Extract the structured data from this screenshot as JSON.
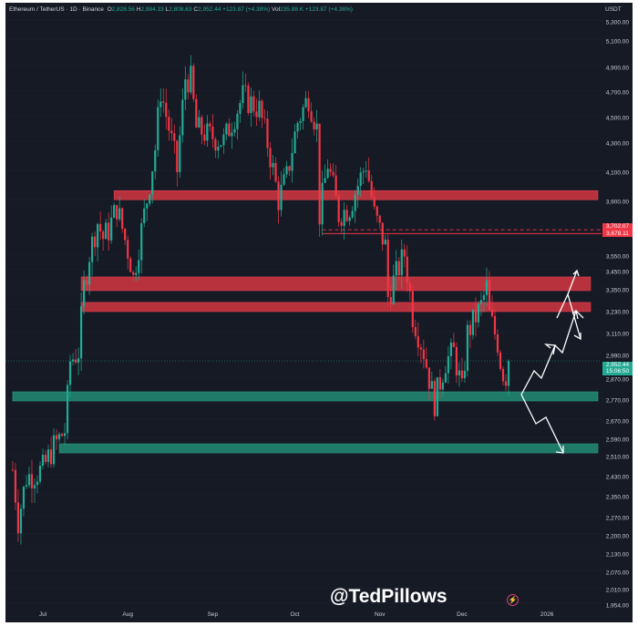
{
  "header": {
    "symbol": "Ethereum / TetherUS · 1D · Binance",
    "o_label": "O",
    "open": "2,828.56",
    "h_label": "H",
    "high": "2,984.33",
    "l_label": "L",
    "low": "2,808.63",
    "c_label": "C",
    "close": "2,952.44",
    "change": "+123.87 (+4.38%)",
    "vol_label": "Vol",
    "volume": "235.88 K",
    "vol_change": "+123.87 (+4.38%)"
  },
  "axis": {
    "unit": "USDT",
    "ticks": [
      "5,300.00",
      "5,100.00",
      "4,900.00",
      "4,700.00",
      "4,500.00",
      "4,300.00",
      "4,100.00",
      "3,900.00",
      "3,550.00",
      "3,450.00",
      "3,350.00",
      "3,230.00",
      "3,110.00",
      "2,990.00",
      "2,870.00",
      "2,770.00",
      "2,670.00",
      "2,590.00",
      "2,510.00",
      "2,430.00",
      "2,350.00",
      "2,270.00",
      "2,200.00",
      "2,130.00",
      "2,070.00",
      "2,010.00",
      "1,954.00"
    ]
  },
  "badges": {
    "level_1": "3,702.07",
    "level_2": "3,678.11",
    "price": "2,952.44",
    "countdown": "15:06:50"
  },
  "xaxis": [
    "Jul",
    "Aug",
    "Sep",
    "Oct",
    "Nov",
    "Dec",
    "2026"
  ],
  "watermark": "@TedPillows",
  "colors": {
    "up": "#22ab94",
    "down": "#f23645",
    "resistance": "#b8323d",
    "support": "#1f7a68",
    "bg": "#161a25"
  },
  "chart_data": {
    "type": "candlestick",
    "scale": "log",
    "ylim": [
      1954,
      5300
    ],
    "interval": "1D",
    "price_path": [
      [
        "2025-06-20",
        2450
      ],
      [
        "2025-06-22",
        2250
      ],
      [
        "2025-06-25",
        2420
      ],
      [
        "2025-07-01",
        2450
      ],
      [
        "2025-07-05",
        2550
      ],
      [
        "2025-07-09",
        2620
      ],
      [
        "2025-07-10",
        2770
      ],
      [
        "2025-07-11",
        2950
      ],
      [
        "2025-07-14",
        3000
      ],
      [
        "2025-07-16",
        3350
      ],
      [
        "2025-07-18",
        3550
      ],
      [
        "2025-07-21",
        3750
      ],
      [
        "2025-07-23",
        3650
      ],
      [
        "2025-07-25",
        3700
      ],
      [
        "2025-07-28",
        3850
      ],
      [
        "2025-08-02",
        3500
      ],
      [
        "2025-08-03",
        3400
      ],
      [
        "2025-08-06",
        3700
      ],
      [
        "2025-08-08",
        3900
      ],
      [
        "2025-08-11",
        4250
      ],
      [
        "2025-08-13",
        4700
      ],
      [
        "2025-08-15",
        4500
      ],
      [
        "2025-08-19",
        4100
      ],
      [
        "2025-08-22",
        4800
      ],
      [
        "2025-08-24",
        4780
      ],
      [
        "2025-08-26",
        4400
      ],
      [
        "2025-08-30",
        4350
      ],
      [
        "2025-09-05",
        4300
      ],
      [
        "2025-09-12",
        4650
      ],
      [
        "2025-09-18",
        4550
      ],
      [
        "2025-09-22",
        4200
      ],
      [
        "2025-09-25",
        3900
      ],
      [
        "2025-09-28",
        4050
      ],
      [
        "2025-10-02",
        4450
      ],
      [
        "2025-10-06",
        4650
      ],
      [
        "2025-10-09",
        4400
      ],
      [
        "2025-10-10",
        3800
      ],
      [
        "2025-10-13",
        4150
      ],
      [
        "2025-10-17",
        3800
      ],
      [
        "2025-10-21",
        3850
      ],
      [
        "2025-10-27",
        4150
      ],
      [
        "2025-10-30",
        3800
      ],
      [
        "2025-11-03",
        3600
      ],
      [
        "2025-11-04",
        3300
      ],
      [
        "2025-11-10",
        3550
      ],
      [
        "2025-11-13",
        3200
      ],
      [
        "2025-11-17",
        3000
      ],
      [
        "2025-11-20",
        2800
      ],
      [
        "2025-11-21",
        2750
      ],
      [
        "2025-11-25",
        2950
      ],
      [
        "2025-11-28",
        3000
      ],
      [
        "2025-12-01",
        2800
      ],
      [
        "2025-12-03",
        3100
      ],
      [
        "2025-12-08",
        3250
      ],
      [
        "2025-12-10",
        3350
      ],
      [
        "2025-12-11",
        3200
      ],
      [
        "2025-12-14",
        3050
      ],
      [
        "2025-12-16",
        2850
      ],
      [
        "2025-12-17",
        2828.56
      ],
      [
        "2025-12-18",
        2952.44
      ]
    ],
    "zones": [
      {
        "type": "resistance",
        "from": 3900,
        "to": 3960,
        "start": "2025-07-27"
      },
      {
        "type": "resistance",
        "from": 3335,
        "to": 3410,
        "start": "2025-07-15"
      },
      {
        "type": "resistance",
        "from": 3220,
        "to": 3270,
        "start": "2025-07-15"
      },
      {
        "type": "support",
        "from": 2760,
        "to": 2800,
        "start": "2025-06-20"
      },
      {
        "type": "support",
        "from": 2520,
        "to": 2560,
        "start": "2025-07-07"
      }
    ],
    "lines": [
      {
        "value": 3702.07,
        "style": "dashed",
        "start": "2025-10-11"
      },
      {
        "value": 3678.11,
        "style": "solid",
        "start": "2025-10-11"
      }
    ]
  }
}
